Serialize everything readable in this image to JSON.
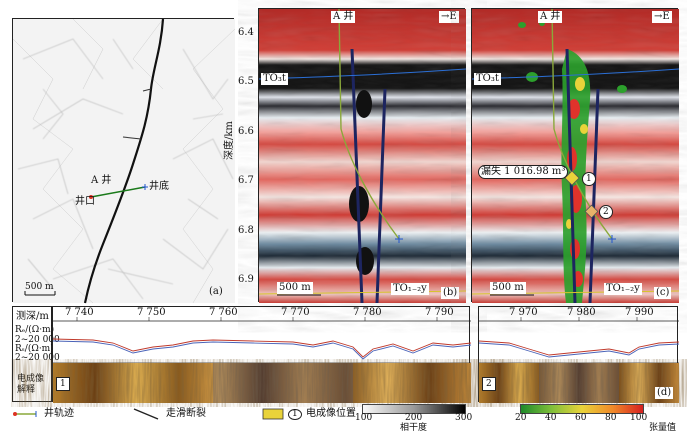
{
  "panel_a": {
    "label": "(a)",
    "scale": "500 m",
    "well_name": "A 井",
    "well_bottom": "井底",
    "wellhead": "井口"
  },
  "panel_b": {
    "label": "(b)",
    "well_name": "A 井",
    "direction": "→E",
    "horizon_top": "TO₃t",
    "horizon_bottom": "TO₁₋₂y",
    "scale": "500 m",
    "yaxis_label": "深度/km",
    "yticks": [
      "6.4",
      "6.5",
      "6.6",
      "6.7",
      "6.8",
      "6.9"
    ]
  },
  "panel_c": {
    "label": "(c)",
    "well_name": "A 井",
    "direction": "→E",
    "horizon_top": "TO₃t",
    "horizon_bottom": "TO₁₋₂y",
    "scale": "500 m",
    "loss_text": "漏失 1 016.98 m³",
    "marker1": "1",
    "marker2": "2"
  },
  "panel_d": {
    "label": "(d)",
    "depth_label": "测深/m",
    "ticks_left": [
      "7 740",
      "7 750",
      "7 760",
      "7 770",
      "7 780",
      "7 790"
    ],
    "ticks_right": [
      "7 970",
      "7 980",
      "7 990"
    ],
    "track1": "Rₑ/(Ω·m)",
    "track1_range": "2~20 000",
    "track2": "Rₛ/(Ω·m)",
    "track2_range": "2~20 000",
    "image_label": "电成像解释",
    "marker1": "1",
    "marker2": "2"
  },
  "legend": {
    "trajectory": "井轨迹",
    "fault": "走滑断裂",
    "image_pos": "电成像位置",
    "image_pos_num": "1",
    "coh_ticks": [
      "100",
      "200",
      "300"
    ],
    "coh_label": "相干度",
    "tension_ticks": [
      "20",
      "40",
      "60",
      "80",
      "100"
    ],
    "tension_label": "张量值"
  },
  "colors": {
    "seis_red": "#c8322e",
    "seis_black": "#111111",
    "seis_white": "#f2f2ee",
    "tension_green": "#2ca02c",
    "trajectory_green": "#8aa83a",
    "log_red": "#c0392b",
    "log_blue": "#4a63b8"
  }
}
